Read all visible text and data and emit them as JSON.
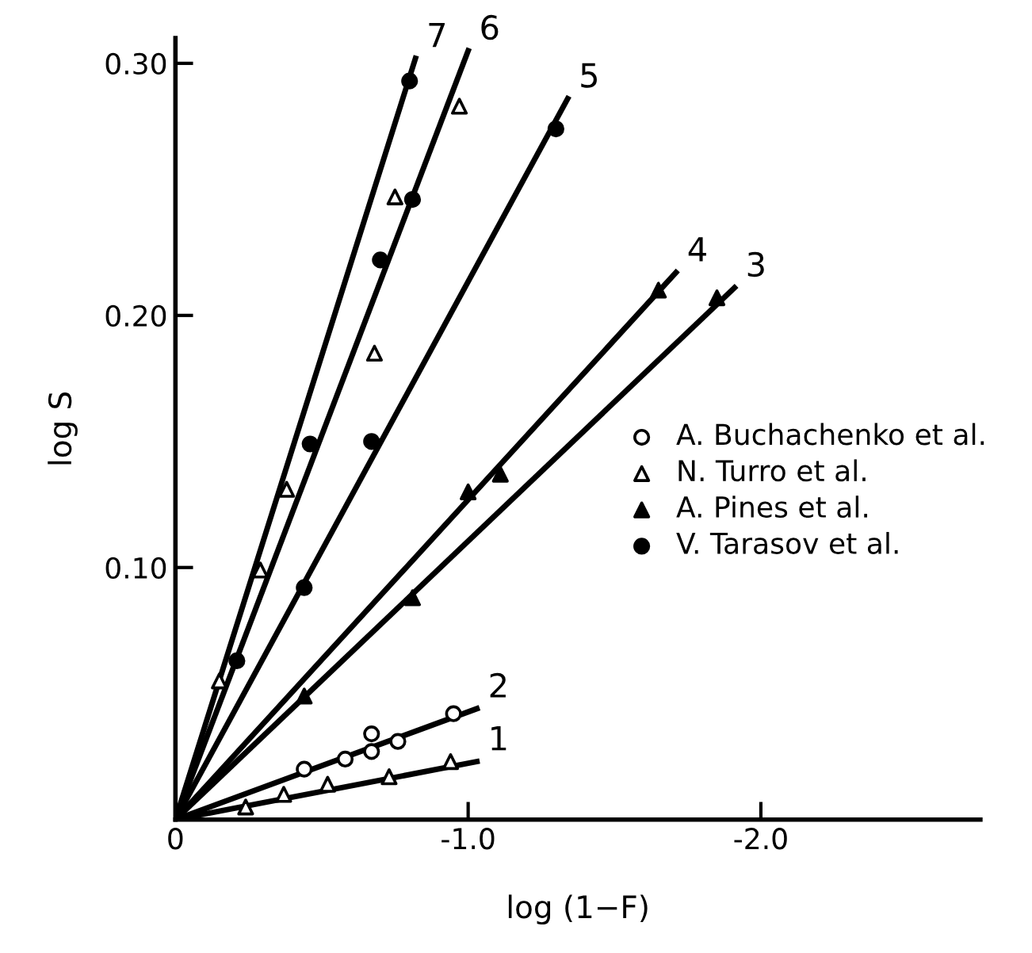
{
  "chart_data": {
    "type": "scatter",
    "xlabel": "log (1−F)",
    "ylabel": "log S",
    "xlim": [
      0,
      -2.75
    ],
    "ylim": [
      0,
      0.31
    ],
    "xticks": [
      0,
      {
        "value": -1.0,
        "label": "-1.0"
      },
      {
        "value": -2.0,
        "label": "-2.0"
      }
    ],
    "yticks": [
      {
        "value": 0.1,
        "label": "0.10"
      },
      {
        "value": 0.2,
        "label": "0.20"
      },
      {
        "value": 0.3,
        "label": "0.30"
      }
    ],
    "grid": false,
    "legend": "right",
    "series": [
      {
        "name": "A. Buchachenko et al.",
        "marker": "circle",
        "color": "#ffffff",
        "x": [
          -0.44,
          -0.58,
          -0.67,
          -0.67,
          -0.76,
          -0.95
        ],
        "values": [
          0.02,
          0.024,
          0.034,
          0.027,
          0.031,
          0.042
        ]
      },
      {
        "name": "N. Turro et al.",
        "marker": "triangle",
        "color": "#ffffff",
        "x": [
          -0.24,
          -0.37,
          -0.52,
          -0.73,
          -0.94,
          -0.15,
          -0.29,
          -0.38,
          -0.68,
          -0.75,
          -0.97
        ],
        "values": [
          0.005,
          0.01,
          0.014,
          0.017,
          0.023,
          0.055,
          0.099,
          0.131,
          0.185,
          0.247,
          0.283
        ]
      },
      {
        "name": "A. Pines et al.",
        "marker": "triangle",
        "color": "#000000",
        "x": [
          -0.44,
          -0.81,
          -1.0,
          -1.11,
          -1.65,
          -1.85
        ],
        "values": [
          0.049,
          0.088,
          0.13,
          0.137,
          0.21,
          0.207
        ]
      },
      {
        "name": "V. Tarasov et al.",
        "marker": "circle",
        "color": "#000000",
        "x": [
          -0.21,
          -0.44,
          -0.46,
          -0.67,
          -0.7,
          -0.81,
          -0.8,
          -1.3
        ],
        "values": [
          0.063,
          0.092,
          0.149,
          0.15,
          0.222,
          0.246,
          0.293,
          0.274
        ]
      },
      {
        "name": "1",
        "type": "line",
        "color": "#000000",
        "x": [
          0,
          -1.03
        ],
        "values": [
          0,
          0.023
        ]
      },
      {
        "name": "2",
        "type": "line",
        "color": "#000000",
        "x": [
          0,
          -1.03
        ],
        "values": [
          0,
          0.044
        ]
      },
      {
        "name": "3",
        "type": "line",
        "color": "#000000",
        "x": [
          0,
          -1.91
        ],
        "values": [
          0,
          0.211
        ]
      },
      {
        "name": "4",
        "type": "line",
        "color": "#000000",
        "x": [
          0,
          -1.71
        ],
        "values": [
          0,
          0.217
        ]
      },
      {
        "name": "5",
        "type": "line",
        "color": "#000000",
        "x": [
          0,
          -1.34
        ],
        "values": [
          0,
          0.286
        ]
      },
      {
        "name": "6",
        "type": "line",
        "color": "#000000",
        "x": [
          0,
          -1.0
        ],
        "values": [
          0,
          0.305
        ]
      },
      {
        "name": "7",
        "type": "line",
        "color": "#000000",
        "x": [
          0,
          -0.82
        ],
        "values": [
          0,
          0.302
        ]
      }
    ]
  }
}
